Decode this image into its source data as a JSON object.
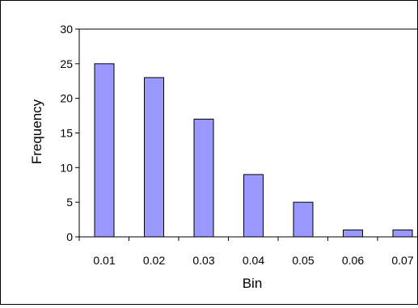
{
  "chart_data": {
    "type": "bar",
    "title": "",
    "xlabel": "Bin",
    "ylabel": "Frequency",
    "categories": [
      "0.01",
      "0.02",
      "0.03",
      "0.04",
      "0.05",
      "0.06",
      "0.07"
    ],
    "values": [
      25,
      23,
      17,
      9,
      5,
      1,
      1
    ],
    "ylim": [
      0,
      30
    ],
    "yticks": [
      "0",
      "5",
      "10",
      "15",
      "20",
      "25",
      "30"
    ],
    "grid": false,
    "legend": "none",
    "colors": {
      "bar_fill": "#9999ff",
      "bar_stroke": "#000000"
    }
  }
}
